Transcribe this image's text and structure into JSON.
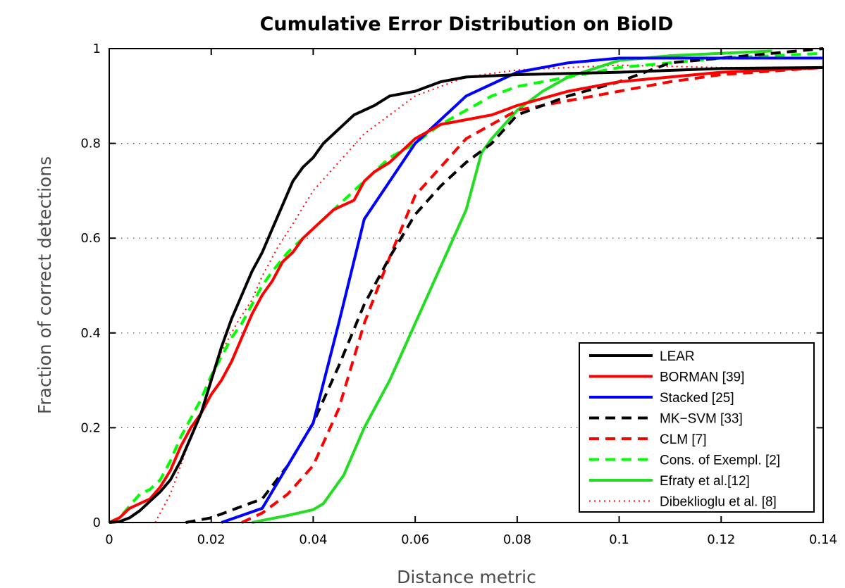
{
  "chart_data": {
    "type": "line",
    "title": "Cumulative Error Distribution on BioID",
    "xlabel": "Distance metric",
    "ylabel": "Fraction of correct detections",
    "xlim": [
      0,
      0.14
    ],
    "ylim": [
      0,
      1
    ],
    "xticks": [
      0,
      0.02,
      0.04,
      0.06,
      0.08,
      0.1,
      0.12,
      0.14
    ],
    "xtick_labels": [
      "0",
      "0.02",
      "0.04",
      "0.06",
      "0.08",
      "0.1",
      "0.12",
      "0.14"
    ],
    "yticks": [
      0,
      0.2,
      0.4,
      0.6,
      0.8,
      1
    ],
    "ytick_labels": [
      "0",
      "0.2",
      "0.4",
      "0.6",
      "0.8",
      "1"
    ],
    "grid": "horizontal dotted",
    "legend_position": "bottom-right",
    "series": [
      {
        "name": "LEAR",
        "color": "#000000",
        "style": "solid",
        "x": [
          0,
          0.002,
          0.004,
          0.006,
          0.008,
          0.01,
          0.012,
          0.014,
          0.016,
          0.018,
          0.02,
          0.022,
          0.024,
          0.026,
          0.028,
          0.03,
          0.032,
          0.034,
          0.036,
          0.038,
          0.04,
          0.042,
          0.044,
          0.046,
          0.048,
          0.05,
          0.052,
          0.055,
          0.06,
          0.065,
          0.07,
          0.08,
          0.1,
          0.12,
          0.14
        ],
        "y": [
          0,
          0.002,
          0.01,
          0.025,
          0.045,
          0.065,
          0.09,
          0.13,
          0.18,
          0.23,
          0.3,
          0.37,
          0.43,
          0.48,
          0.53,
          0.57,
          0.62,
          0.67,
          0.72,
          0.75,
          0.77,
          0.8,
          0.82,
          0.84,
          0.86,
          0.87,
          0.88,
          0.9,
          0.91,
          0.93,
          0.94,
          0.945,
          0.95,
          0.958,
          0.96
        ]
      },
      {
        "name": "BORMAN [39]",
        "color": "#ff0000",
        "style": "solid",
        "x": [
          0,
          0.002,
          0.004,
          0.006,
          0.008,
          0.01,
          0.012,
          0.014,
          0.016,
          0.018,
          0.02,
          0.022,
          0.024,
          0.026,
          0.028,
          0.03,
          0.032,
          0.034,
          0.036,
          0.038,
          0.04,
          0.042,
          0.044,
          0.046,
          0.048,
          0.05,
          0.052,
          0.055,
          0.058,
          0.06,
          0.065,
          0.07,
          0.075,
          0.08,
          0.09,
          0.1,
          0.12,
          0.14
        ],
        "y": [
          0,
          0.01,
          0.03,
          0.04,
          0.05,
          0.075,
          0.11,
          0.16,
          0.2,
          0.23,
          0.27,
          0.3,
          0.34,
          0.39,
          0.44,
          0.48,
          0.51,
          0.55,
          0.57,
          0.6,
          0.62,
          0.64,
          0.66,
          0.67,
          0.68,
          0.72,
          0.74,
          0.76,
          0.79,
          0.81,
          0.84,
          0.85,
          0.86,
          0.88,
          0.91,
          0.93,
          0.95,
          0.96
        ]
      },
      {
        "name": "Stacked [25]",
        "color": "#0000ff",
        "style": "solid",
        "x": [
          0.022,
          0.03,
          0.04,
          0.045,
          0.05,
          0.055,
          0.06,
          0.065,
          0.07,
          0.075,
          0.08,
          0.09,
          0.1,
          0.12,
          0.14
        ],
        "y": [
          0,
          0.03,
          0.21,
          0.42,
          0.64,
          0.72,
          0.8,
          0.85,
          0.9,
          0.925,
          0.95,
          0.97,
          0.98,
          0.98,
          0.98
        ]
      },
      {
        "name": "MK−SVM [33]",
        "color": "#000000",
        "style": "dashed",
        "x": [
          0.015,
          0.02,
          0.025,
          0.03,
          0.035,
          0.04,
          0.045,
          0.05,
          0.055,
          0.06,
          0.065,
          0.07,
          0.075,
          0.08,
          0.085,
          0.09,
          0.1,
          0.11,
          0.12,
          0.14
        ],
        "y": [
          0,
          0.01,
          0.03,
          0.05,
          0.12,
          0.21,
          0.33,
          0.46,
          0.56,
          0.65,
          0.71,
          0.76,
          0.8,
          0.86,
          0.88,
          0.9,
          0.93,
          0.97,
          0.98,
          1.0
        ]
      },
      {
        "name": "CLM [7]",
        "color": "#ff0000",
        "style": "dashed",
        "x": [
          0.026,
          0.03,
          0.035,
          0.04,
          0.045,
          0.05,
          0.055,
          0.06,
          0.065,
          0.07,
          0.075,
          0.08,
          0.085,
          0.09,
          0.1,
          0.11,
          0.12,
          0.14
        ],
        "y": [
          0,
          0.02,
          0.06,
          0.12,
          0.24,
          0.42,
          0.56,
          0.69,
          0.75,
          0.81,
          0.84,
          0.87,
          0.88,
          0.89,
          0.91,
          0.93,
          0.945,
          0.96
        ]
      },
      {
        "name": "Cons. of Exempl. [2]",
        "color": "#00ff00",
        "style": "dashed",
        "x": [
          0,
          0.002,
          0.004,
          0.006,
          0.008,
          0.01,
          0.012,
          0.014,
          0.016,
          0.018,
          0.02,
          0.022,
          0.024,
          0.026,
          0.028,
          0.03,
          0.032,
          0.035,
          0.04,
          0.045,
          0.05,
          0.055,
          0.06,
          0.065,
          0.07,
          0.075,
          0.08,
          0.09,
          0.1,
          0.12,
          0.14
        ],
        "y": [
          0,
          0.01,
          0.035,
          0.06,
          0.07,
          0.09,
          0.13,
          0.18,
          0.22,
          0.26,
          0.31,
          0.35,
          0.39,
          0.42,
          0.46,
          0.5,
          0.53,
          0.57,
          0.62,
          0.67,
          0.72,
          0.77,
          0.8,
          0.84,
          0.87,
          0.9,
          0.92,
          0.94,
          0.96,
          0.98,
          0.99
        ]
      },
      {
        "name": "Efraty et al.[12]",
        "color": "#22dd22",
        "style": "solid",
        "x": [
          0.028,
          0.035,
          0.04,
          0.042,
          0.046,
          0.05,
          0.055,
          0.06,
          0.065,
          0.07,
          0.073,
          0.075,
          0.08,
          0.085,
          0.09,
          0.1,
          0.11,
          0.12,
          0.13
        ],
        "y": [
          0,
          0.015,
          0.027,
          0.04,
          0.1,
          0.2,
          0.3,
          0.42,
          0.54,
          0.66,
          0.78,
          0.81,
          0.87,
          0.91,
          0.94,
          0.975,
          0.985,
          0.99,
          0.995
        ]
      },
      {
        "name": "Dibeklioglu et al. [8]",
        "color": "#ff0000",
        "style": "dotted",
        "x": [
          0.009,
          0.01,
          0.012,
          0.014,
          0.016,
          0.018,
          0.02,
          0.022,
          0.025,
          0.028,
          0.03,
          0.033,
          0.036,
          0.04,
          0.045,
          0.05,
          0.055,
          0.06,
          0.065,
          0.07,
          0.08,
          0.09,
          0.1,
          0.12,
          0.14
        ],
        "y": [
          0,
          0.02,
          0.06,
          0.12,
          0.18,
          0.23,
          0.3,
          0.36,
          0.42,
          0.47,
          0.52,
          0.58,
          0.63,
          0.7,
          0.76,
          0.82,
          0.86,
          0.9,
          0.92,
          0.94,
          0.955,
          0.96,
          0.965,
          0.96,
          0.96
        ]
      }
    ]
  }
}
